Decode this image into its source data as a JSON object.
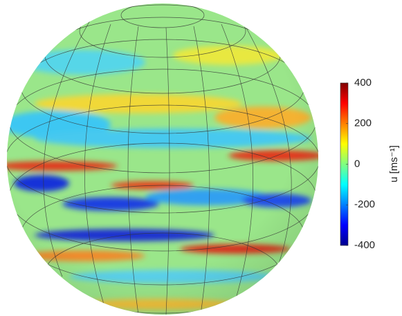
{
  "chart_data": {
    "type": "colormap-sphere",
    "colorbar_label": "u [ms⁻¹]",
    "colormap": "jet",
    "ylim": [
      -400,
      400
    ],
    "yticks": [
      -400,
      -200,
      0,
      200,
      400
    ]
  }
}
